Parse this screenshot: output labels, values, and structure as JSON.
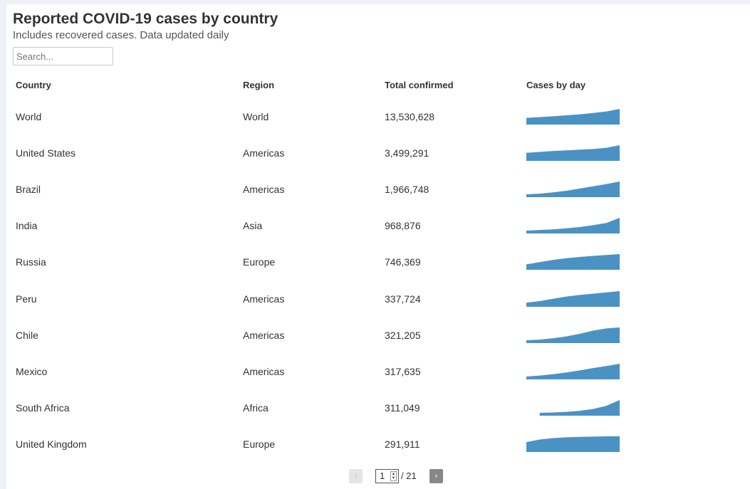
{
  "header": {
    "title": "Reported COVID-19 cases by country",
    "subtitle": "Includes recovered cases. Data updated daily"
  },
  "search": {
    "placeholder": "Search...",
    "value": ""
  },
  "table": {
    "columns": [
      "Country",
      "Region",
      "Total confirmed",
      "Cases by day"
    ],
    "rows": [
      {
        "country": "World",
        "region": "World",
        "total": "13,530,628",
        "trend": [
          0.3,
          0.36,
          0.42,
          0.5,
          0.58,
          0.68,
          0.8,
          1.0
        ]
      },
      {
        "country": "United States",
        "region": "Americas",
        "total": "3,499,291",
        "trend": [
          0.4,
          0.48,
          0.55,
          0.6,
          0.65,
          0.7,
          0.8,
          1.0
        ]
      },
      {
        "country": "Brazil",
        "region": "Americas",
        "total": "1,966,748",
        "trend": [
          0.0,
          0.05,
          0.15,
          0.28,
          0.45,
          0.62,
          0.8,
          1.0
        ]
      },
      {
        "country": "India",
        "region": "Asia",
        "total": "968,876",
        "trend": [
          0.0,
          0.05,
          0.1,
          0.18,
          0.28,
          0.42,
          0.6,
          1.0
        ]
      },
      {
        "country": "Russia",
        "region": "Europe",
        "total": "746,369",
        "trend": [
          0.2,
          0.38,
          0.55,
          0.68,
          0.78,
          0.86,
          0.93,
          1.0
        ]
      },
      {
        "country": "Peru",
        "region": "Americas",
        "total": "337,724",
        "trend": [
          0.1,
          0.22,
          0.4,
          0.58,
          0.7,
          0.8,
          0.9,
          1.0
        ]
      },
      {
        "country": "Chile",
        "region": "Americas",
        "total": "321,205",
        "trend": [
          0.0,
          0.05,
          0.15,
          0.3,
          0.5,
          0.75,
          0.92,
          1.0
        ]
      },
      {
        "country": "Mexico",
        "region": "Americas",
        "total": "317,635",
        "trend": [
          0.0,
          0.08,
          0.18,
          0.32,
          0.48,
          0.66,
          0.82,
          1.0
        ]
      },
      {
        "country": "South Africa",
        "region": "Africa",
        "total": "311,049",
        "trend": [
          null,
          0.0,
          0.03,
          0.08,
          0.16,
          0.3,
          0.55,
          1.0
        ]
      },
      {
        "country": "United Kingdom",
        "region": "Europe",
        "total": "291,911",
        "trend": [
          0.55,
          0.75,
          0.86,
          0.92,
          0.96,
          0.98,
          1.0,
          1.0
        ]
      }
    ]
  },
  "pagination": {
    "prev_glyph": "‹",
    "next_glyph": "›",
    "current_page": "1",
    "total_pages": "/ 21"
  },
  "colors": {
    "spark": "#4b92c4"
  }
}
